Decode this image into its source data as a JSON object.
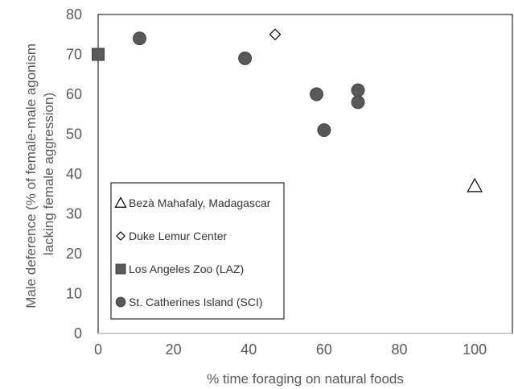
{
  "chart_data": {
    "type": "scatter",
    "xlabel": "% time foraging on natural foods",
    "ylabel_lines": [
      "Male deference (% of female-male agonism",
      "lacking female aggression)"
    ],
    "xlim": [
      0,
      110
    ],
    "ylim": [
      0,
      80
    ],
    "x_ticks": [
      0,
      20,
      40,
      60,
      80,
      100
    ],
    "y_ticks": [
      0,
      10,
      20,
      30,
      40,
      50,
      60,
      70,
      80
    ],
    "grid": false,
    "legend_position": "bottom-left inside",
    "colors": {
      "filled": "#595959",
      "outline": "#000000",
      "axis": "#bfbfbf"
    },
    "series": [
      {
        "name": "Bezà Mahafaly, Madagascar",
        "marker": "triangle-open",
        "points": [
          [
            100,
            37
          ]
        ]
      },
      {
        "name": "Duke Lemur Center",
        "marker": "diamond-open",
        "points": [
          [
            47,
            75
          ]
        ]
      },
      {
        "name": "Los Angeles Zoo (LAZ)",
        "marker": "square-filled",
        "points": [
          [
            0,
            70
          ]
        ]
      },
      {
        "name": "St. Catherines Island (SCI)",
        "marker": "circle-filled",
        "points": [
          [
            11,
            74
          ],
          [
            39,
            69
          ],
          [
            58,
            60
          ],
          [
            60,
            51
          ],
          [
            69,
            61
          ],
          [
            69,
            58
          ]
        ]
      }
    ]
  }
}
